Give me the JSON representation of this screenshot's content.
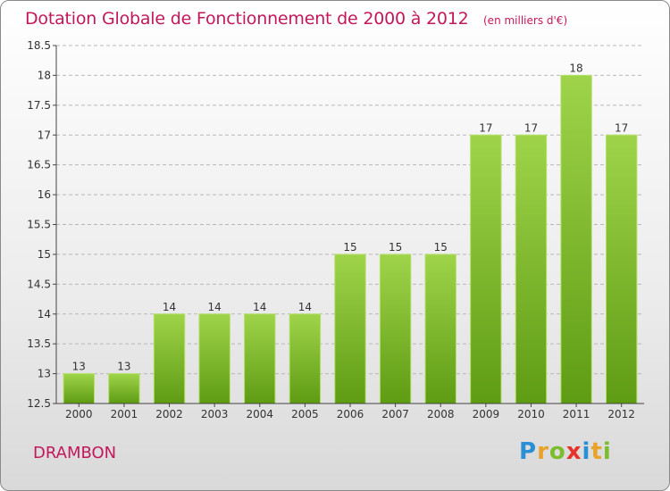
{
  "title": "Dotation Globale de Fonctionnement de 2000 à 2012",
  "subtitle": "(en milliers d'€)",
  "commune": "DRAMBON",
  "logo": {
    "letters": [
      "P",
      "r",
      "o",
      "x",
      "i",
      "t",
      "i"
    ],
    "colors": [
      "#2b8fd6",
      "#e8a32b",
      "#7cbd2e",
      "#e6332a",
      "#2b8fd6",
      "#e8a32b",
      "#7cbd2e"
    ]
  },
  "colors": {
    "bar_top": "#9fd44a",
    "bar_bottom": "#5e9c14",
    "text": "#c2185b",
    "axis": "#444444",
    "grid": "#b8b8b8"
  },
  "chart_data": {
    "type": "bar",
    "title": "Dotation Globale de Fonctionnement de 2000 à 2012",
    "subtitle": "(en milliers d'€)",
    "xlabel": "",
    "ylabel": "",
    "categories": [
      "2000",
      "2001",
      "2002",
      "2003",
      "2004",
      "2005",
      "2006",
      "2007",
      "2008",
      "2009",
      "2010",
      "2011",
      "2012"
    ],
    "values": [
      13,
      13,
      14,
      14,
      14,
      14,
      15,
      15,
      15,
      17,
      17,
      18,
      17
    ],
    "data_labels": [
      "13",
      "13",
      "14",
      "14",
      "14",
      "14",
      "15",
      "15",
      "15",
      "17",
      "17",
      "18",
      "17"
    ],
    "ylim": [
      12.5,
      18.5
    ],
    "yticks": [
      12.5,
      13,
      13.5,
      14,
      14.5,
      15,
      15.5,
      16,
      16.5,
      17,
      17.5,
      18,
      18.5
    ],
    "ytick_labels": [
      "12.5",
      "13",
      "13.5",
      "14",
      "14.5",
      "15",
      "15.5",
      "16",
      "16.5",
      "17",
      "17.5",
      "18",
      "18.5"
    ],
    "grid": true
  }
}
